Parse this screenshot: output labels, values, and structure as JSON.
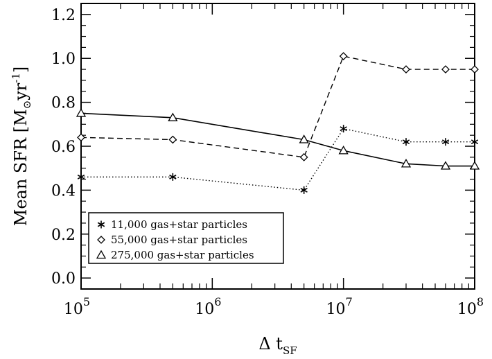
{
  "chart_data": {
    "type": "line",
    "title": "",
    "xlabel": {
      "main": "Δ t",
      "sub": "SF"
    },
    "ylabel": {
      "main": "Mean SFR [M",
      "sub": "⊙",
      "mid": "yr",
      "sup": "-1",
      "end": "]"
    },
    "xscale": "log",
    "xlim": [
      100000,
      100000000
    ],
    "ylim": [
      -0.05,
      1.25
    ],
    "yticks": [
      {
        "value": 0.0,
        "label": "0.0"
      },
      {
        "value": 0.2,
        "label": "0.2"
      },
      {
        "value": 0.4,
        "label": "0.4"
      },
      {
        "value": 0.6,
        "label": "0.6"
      },
      {
        "value": 0.8,
        "label": "0.8"
      },
      {
        "value": 1.0,
        "label": "1.0"
      },
      {
        "value": 1.2,
        "label": "1.2"
      }
    ],
    "xticks": [
      {
        "value": 100000,
        "base": "10",
        "exp": "5"
      },
      {
        "value": 1000000,
        "base": "10",
        "exp": "6"
      },
      {
        "value": 10000000,
        "base": "10",
        "exp": "7"
      },
      {
        "value": 100000000,
        "base": "10",
        "exp": "8"
      }
    ],
    "legend_position": "bottom-left",
    "series": [
      {
        "name": "11,000 gas+star particles",
        "marker": "asterisk",
        "linestyle": "dotted",
        "x": [
          100000,
          500000,
          5000000,
          10000000,
          30000000,
          60000000,
          100000000
        ],
        "y": [
          0.46,
          0.46,
          0.4,
          0.68,
          0.62,
          0.62,
          0.62
        ]
      },
      {
        "name": "55,000 gas+star particles",
        "marker": "diamond",
        "linestyle": "dashed",
        "x": [
          100000,
          500000,
          5000000,
          10000000,
          30000000,
          60000000,
          100000000
        ],
        "y": [
          0.64,
          0.63,
          0.55,
          1.01,
          0.95,
          0.95,
          0.95
        ]
      },
      {
        "name": "275,000 gas+star particles",
        "marker": "triangle",
        "linestyle": "solid",
        "x": [
          100000,
          500000,
          5000000,
          10000000,
          30000000,
          60000000,
          100000000
        ],
        "y": [
          0.75,
          0.73,
          0.63,
          0.58,
          0.52,
          0.51,
          0.51
        ]
      }
    ]
  }
}
